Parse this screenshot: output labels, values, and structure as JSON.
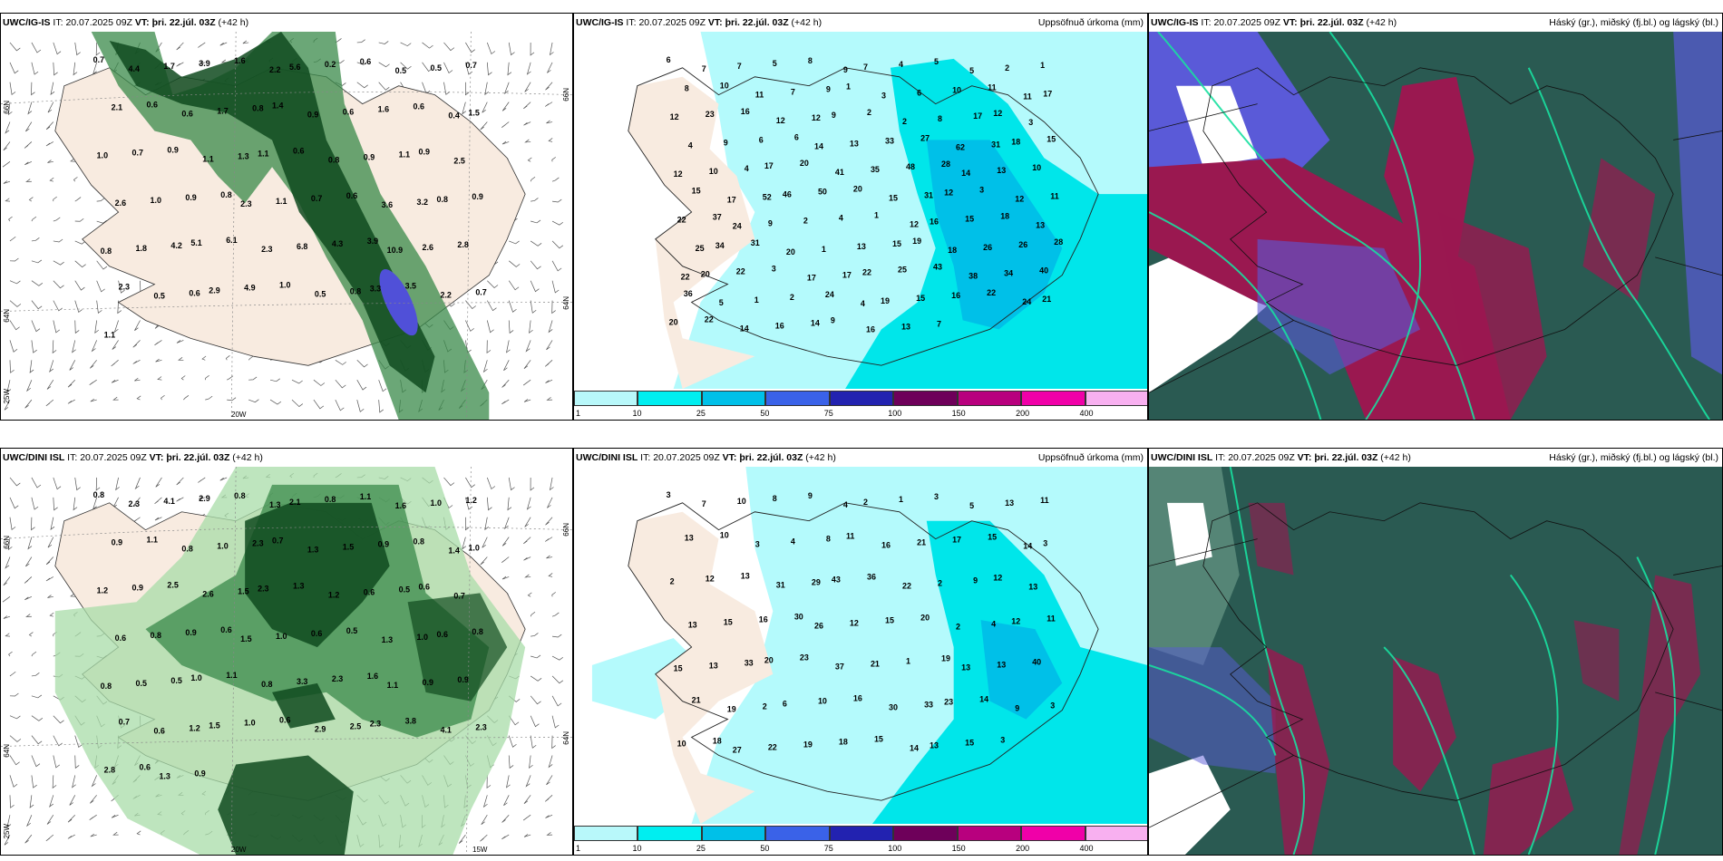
{
  "panels": {
    "p1": {
      "model": "UWC/IG-IS",
      "it": "20.07.2025 09Z",
      "vt_label": "VT:",
      "vt": "þri. 22.júl. 03Z",
      "lead": "(+42 h)"
    },
    "p2": {
      "model": "UWC/IG-IS",
      "it": "20.07.2025 09Z",
      "vt_label": "VT:",
      "vt": "þri. 22.júl. 03Z",
      "lead": "(+42 h)",
      "right": "Uppsöfnuð úrkoma (mm)"
    },
    "p3": {
      "model": "UWC/IG-IS",
      "it": "20.07.2025 09Z",
      "vt_label": "VT:",
      "vt": "þri. 22.júl. 03Z",
      "lead": "(+42 h)",
      "right": "Háský (gr.), miðský (fj.bl.) og lágský (bl.)"
    },
    "p4": {
      "model": "UWC/DINI ISL",
      "it": "20.07.2025 09Z",
      "vt_label": "VT:",
      "vt": "þri. 22.júl. 03Z",
      "lead": "(+42 h)"
    },
    "p5": {
      "model": "UWC/DINI ISL",
      "it": "20.07.2025 09Z",
      "vt_label": "VT:",
      "vt": "þri. 22.júl. 03Z",
      "lead": "(+42 h)",
      "right": "Uppsöfnuð úrkoma (mm)"
    },
    "p6": {
      "model": "UWC/DINI ISL",
      "it": "20.07.2025 09Z",
      "vt_label": "VT:",
      "vt": "þri. 22.júl. 03Z",
      "lead": "(+42 h)",
      "right": "Háský (gr.), miðský (fj.bl.) og lágský (bl.)"
    }
  },
  "it_label": "IT:",
  "axis": {
    "n66": "66N",
    "n64": "64N",
    "w25": "25W",
    "w20": "20W",
    "w15": "15W"
  },
  "legend": {
    "ticks": [
      "1",
      "10",
      "25",
      "50",
      "75",
      "100",
      "150",
      "200",
      "400"
    ],
    "colors": [
      "#b8f8fa",
      "#00eef0",
      "#00c0e8",
      "#3a62e8",
      "#2222b0",
      "#6e005a",
      "#b8007e",
      "#f000a8",
      "#f8b0f0"
    ]
  },
  "colors": {
    "land": "#f8ebe0",
    "sea": "#ffffff",
    "green_dark": "#0f4a1e",
    "green_mid": "#3a8a4a",
    "green_light": "#a8dca8",
    "precip_base": "#b4fafc",
    "precip_mid": "#00e6ea",
    "cloud_dark": "#2a5a52",
    "cloud_wine": "#9a1850",
    "cloud_blue": "#5a5ad8",
    "cloud_teal": "#18e0a0"
  },
  "labels": {
    "p1": [
      "0.7",
      "4.4",
      "1.7",
      "3.9",
      "1.6",
      "2.2",
      "5.6",
      "0.2",
      "0.6",
      "0.5",
      "0.5",
      "0.7",
      "2.1",
      "0.6",
      "0.6",
      "1.7",
      "0.8",
      "1.4",
      "0.9",
      "0.6",
      "1.6",
      "0.6",
      "0.4",
      "1.5",
      "1.0",
      "0.7",
      "0.9",
      "1.1",
      "1.3",
      "1.1",
      "0.6",
      "0.8",
      "0.9",
      "1.1",
      "0.9",
      "2.5",
      "2.6",
      "1.0",
      "0.9",
      "0.8",
      "2.3",
      "1.1",
      "0.7",
      "0.6",
      "3.6",
      "3.2",
      "0.8",
      "0.9",
      "0.8",
      "1.8",
      "4.2",
      "5.1",
      "6.1",
      "2.3",
      "6.8",
      "4.3",
      "3.9",
      "10.9",
      "2.6",
      "2.8",
      "2.3",
      "0.5",
      "0.6",
      "2.9",
      "4.9",
      "1.0",
      "0.5",
      "0.8",
      "3.3",
      "3.5",
      "2.2",
      "0.7",
      "1.1"
    ],
    "p2": [
      "6",
      "7",
      "7",
      "5",
      "8",
      "9",
      "7",
      "4",
      "5",
      "5",
      "2",
      "1",
      "8",
      "10",
      "11",
      "7",
      "9",
      "1",
      "3",
      "6",
      "10",
      "11",
      "11",
      "17",
      "12",
      "23",
      "16",
      "12",
      "12",
      "9",
      "2",
      "2",
      "8",
      "17",
      "12",
      "3",
      "4",
      "9",
      "6",
      "6",
      "14",
      "13",
      "33",
      "27",
      "62",
      "31",
      "18",
      "15",
      "12",
      "10",
      "4",
      "17",
      "20",
      "41",
      "35",
      "48",
      "28",
      "14",
      "13",
      "10",
      "15",
      "17",
      "52",
      "46",
      "50",
      "20",
      "15",
      "31",
      "12",
      "3",
      "12",
      "11",
      "22",
      "37",
      "24",
      "9",
      "2",
      "4",
      "1",
      "12",
      "16",
      "15",
      "18",
      "13",
      "25",
      "34",
      "31",
      "20",
      "1",
      "13",
      "15",
      "19",
      "18",
      "26",
      "26",
      "28",
      "22",
      "20",
      "22",
      "3",
      "17",
      "17",
      "22",
      "25",
      "43",
      "38",
      "34",
      "40",
      "36",
      "5",
      "1",
      "2",
      "24",
      "4",
      "19",
      "15",
      "16",
      "22",
      "24",
      "21",
      "20",
      "22",
      "14",
      "16",
      "14",
      "9",
      "16",
      "13",
      "7"
    ],
    "p4": [
      "0.8",
      "2.3",
      "4.1",
      "2.9",
      "0.8",
      "1.3",
      "2.1",
      "0.8",
      "1.1",
      "1.6",
      "1.0",
      "1.2",
      "0.9",
      "1.1",
      "0.8",
      "1.0",
      "2.3",
      "0.7",
      "1.3",
      "1.5",
      "0.9",
      "0.8",
      "1.4",
      "1.0",
      "1.2",
      "0.9",
      "2.5",
      "2.6",
      "1.5",
      "2.3",
      "1.3",
      "1.2",
      "0.6",
      "0.5",
      "0.6",
      "0.7",
      "0.6",
      "0.8",
      "0.9",
      "0.6",
      "1.5",
      "1.0",
      "0.6",
      "0.5",
      "1.3",
      "1.0",
      "0.6",
      "0.8",
      "0.8",
      "0.5",
      "0.5",
      "1.0",
      "1.1",
      "0.8",
      "3.3",
      "2.3",
      "1.6",
      "1.1",
      "0.9",
      "0.9",
      "0.7",
      "0.6",
      "1.2",
      "1.5",
      "1.0",
      "0.6",
      "2.9",
      "2.5",
      "2.3",
      "3.8",
      "4.1",
      "2.3",
      "2.8",
      "0.6",
      "1.3",
      "0.9"
    ],
    "p5": [
      "3",
      "7",
      "10",
      "8",
      "9",
      "4",
      "2",
      "1",
      "3",
      "5",
      "13",
      "11",
      "13",
      "10",
      "3",
      "4",
      "8",
      "11",
      "16",
      "21",
      "17",
      "15",
      "14",
      "3",
      "2",
      "12",
      "13",
      "31",
      "29",
      "43",
      "36",
      "22",
      "2",
      "9",
      "12",
      "13",
      "13",
      "15",
      "16",
      "30",
      "26",
      "12",
      "15",
      "20",
      "2",
      "4",
      "12",
      "11",
      "15",
      "13",
      "33",
      "20",
      "23",
      "37",
      "21",
      "1",
      "19",
      "13",
      "13",
      "40",
      "21",
      "19",
      "2",
      "6",
      "10",
      "16",
      "30",
      "33",
      "23",
      "14",
      "9",
      "3",
      "10",
      "18",
      "27",
      "22",
      "19",
      "18",
      "15",
      "14",
      "13",
      "15",
      "3"
    ]
  }
}
